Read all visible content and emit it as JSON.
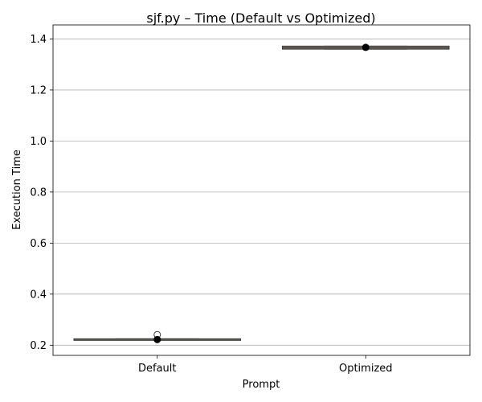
{
  "chart_data": {
    "type": "boxplot",
    "title": "sjf.py – Time (Default vs Optimized)",
    "xlabel": "Prompt",
    "ylabel": "Execution Time",
    "ylim": [
      0.16,
      1.455
    ],
    "yticks": [
      "0.2",
      "0.4",
      "0.6",
      "0.8",
      "1.0",
      "1.2",
      "1.4"
    ],
    "ytick_values": [
      0.2,
      0.4,
      0.6,
      0.8,
      1.0,
      1.2,
      1.4
    ],
    "categories": [
      "Default",
      "Optimized"
    ],
    "grid": "y",
    "series": [
      {
        "category": "Default",
        "q1": 0.221,
        "median": 0.223,
        "q3": 0.225,
        "whisker_low": 0.221,
        "whisker_high": 0.225,
        "outliers": [
          0.241
        ],
        "mean": 0.222,
        "box_color": "#ab9b8a"
      },
      {
        "category": "Optimized",
        "q1": 1.36,
        "median": 1.365,
        "q3": 1.372,
        "whisker_low": 1.36,
        "whisker_high": 1.372,
        "outliers": [],
        "mean": 1.367,
        "box_color": "#7a7268"
      }
    ]
  }
}
